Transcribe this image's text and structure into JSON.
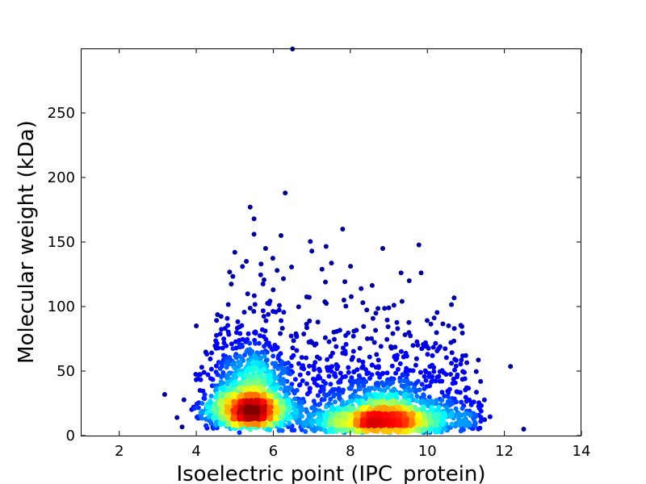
{
  "chart_data": {
    "type": "scatter",
    "title": "",
    "xlabel": "Isoelectric point (IPC_protein)",
    "ylabel": "Molecular weight (kDa)",
    "xlim": [
      1,
      14
    ],
    "ylim": [
      0,
      300
    ],
    "xticks": [
      2,
      4,
      6,
      8,
      10,
      12,
      14
    ],
    "yticks": [
      0,
      50,
      100,
      150,
      200,
      250
    ],
    "grid": false,
    "legend": "none",
    "color_scale": "jet (point density: blue = low, red = high)",
    "colors": {
      "low": "#00008f",
      "mid": "#7fff7f",
      "high": "#800000"
    },
    "density_clusters": [
      {
        "x_center": 5.4,
        "y_center": 25,
        "peak": "red"
      },
      {
        "x_center": 9.0,
        "y_center": 12,
        "peak": "orange"
      }
    ],
    "outlier_points": [
      {
        "x": 6.5,
        "y": 300
      },
      {
        "x": 5.4,
        "y": 177
      },
      {
        "x": 5.5,
        "y": 168
      },
      {
        "x": 7.8,
        "y": 160
      },
      {
        "x": 6.2,
        "y": 155
      },
      {
        "x": 5.5,
        "y": 156
      },
      {
        "x": 7.0,
        "y": 143
      },
      {
        "x": 5.0,
        "y": 142
      },
      {
        "x": 5.8,
        "y": 145
      },
      {
        "x": 5.3,
        "y": 135
      },
      {
        "x": 5.2,
        "y": 131
      },
      {
        "x": 6.1,
        "y": 128
      },
      {
        "x": 4.0,
        "y": 85
      },
      {
        "x": 9.0,
        "y": 99
      },
      {
        "x": 10.7,
        "y": 83
      },
      {
        "x": 3.5,
        "y": 14
      },
      {
        "x": 12.5,
        "y": 5
      }
    ]
  }
}
